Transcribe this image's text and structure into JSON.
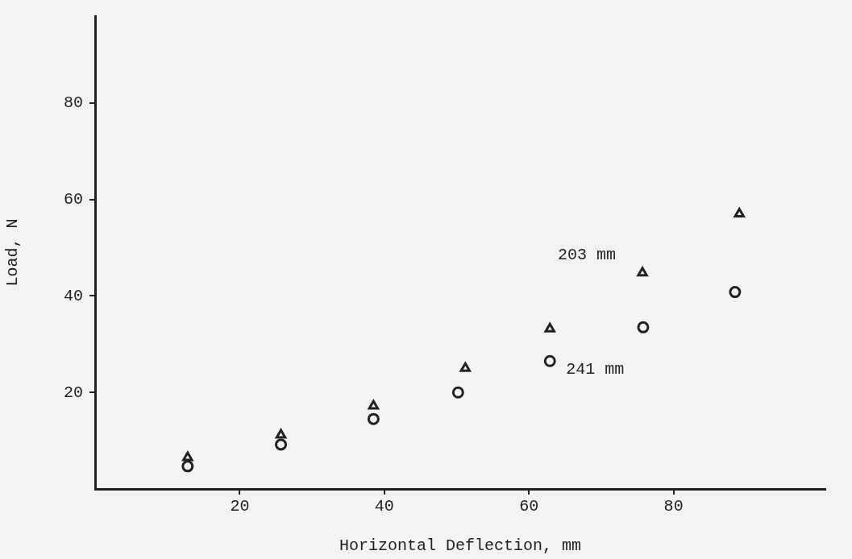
{
  "chart_data": {
    "type": "scatter",
    "xlabel": "Horizontal Deflection, mm",
    "ylabel": "Load, N",
    "xlim": [
      0,
      101
    ],
    "ylim": [
      0,
      98
    ],
    "xticks": [
      20,
      40,
      60,
      80
    ],
    "yticks": [
      20,
      40,
      60,
      80
    ],
    "grid": false,
    "legend": false,
    "series": [
      {
        "name": "203 mm",
        "color": "#222222",
        "marker": "triangle",
        "x": [
          12.8,
          25.7,
          38.5,
          51.2,
          62.9,
          75.7,
          89.1
        ],
        "values": [
          6.5,
          11.2,
          17.2,
          25.0,
          33.2,
          44.8,
          57.0
        ]
      },
      {
        "name": "241 mm",
        "color": "#222222",
        "marker": "circle",
        "x": [
          12.8,
          25.7,
          38.5,
          50.2,
          62.9,
          75.8,
          88.5
        ],
        "values": [
          4.7,
          9.2,
          14.5,
          20.0,
          26.5,
          33.5,
          40.8
        ]
      }
    ]
  }
}
